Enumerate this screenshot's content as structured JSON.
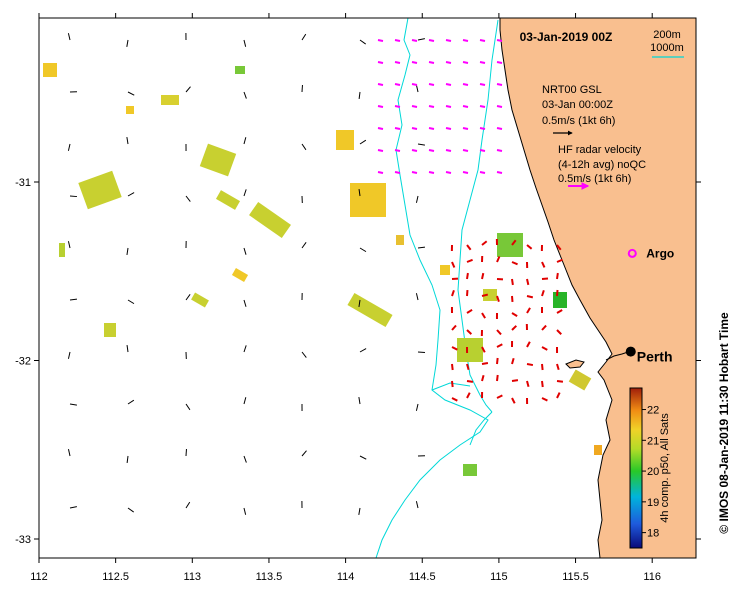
{
  "map": {
    "title": "03-Jan-2019 00Z",
    "credit": "© IMOS 08-Jan-2019 11:30 Hobart Time",
    "lon_range": [
      112,
      116.3
    ],
    "lat_range": [
      -33.1,
      -30.1
    ],
    "x_ticks": [
      "112",
      "112.5",
      "113",
      "113.5",
      "114",
      "114.5",
      "115",
      "115.5",
      "116"
    ],
    "y_ticks": [
      "-31",
      "-32",
      "-33"
    ],
    "depth_legend": {
      "d200": "200m",
      "d1000": "1000m",
      "color": "#00d8d8"
    },
    "model_legend": {
      "line1": "NRT00 GSL",
      "line2": "03-Jan 00:00Z",
      "line3": "0.5m/s (1kt 6h)",
      "arrow_color": "#000000"
    },
    "radar_legend": {
      "line1": "HF radar velocity",
      "line2": "(4-12h avg) noQC",
      "line3": "0.5m/s (1kt 6h)",
      "arrow_color": "#ff00ff"
    },
    "argo": {
      "label": "Argo",
      "lon": 115.87,
      "lat": -31.4,
      "color": "#ff00ff"
    },
    "city": {
      "label": "Perth",
      "lon": 115.86,
      "lat": -31.95
    },
    "colorbar": {
      "title": "4h comp. p50, All Sats",
      "labels": [
        "22",
        "21",
        "20",
        "19",
        "18"
      ],
      "min": 17.5,
      "max": 22.7
    },
    "colors": {
      "land": "#f9bf8f",
      "radar_south": "#e00000",
      "radar_north": "#ff00ff",
      "bathymetry": "#00d8d8"
    }
  }
}
